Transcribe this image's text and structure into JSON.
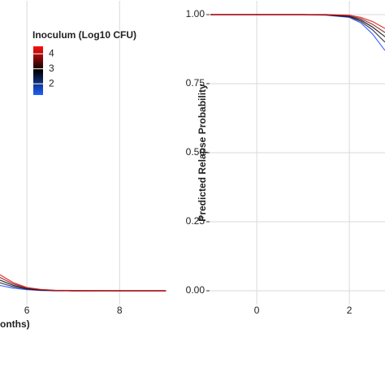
{
  "chart_data": [
    {
      "type": "line",
      "xlabel": "onths)",
      "x": [
        5.4,
        5.7,
        6,
        6.3,
        6.6,
        7,
        8,
        9
      ],
      "series": [
        {
          "color": "#2050ff",
          "values": [
            0.02,
            0.01,
            0.004,
            0.001,
            0,
            0,
            0,
            0
          ]
        },
        {
          "color": "#202040",
          "values": [
            0.03,
            0.015,
            0.006,
            0.002,
            0.001,
            0,
            0,
            0
          ]
        },
        {
          "color": "#000000",
          "values": [
            0.04,
            0.02,
            0.008,
            0.003,
            0.001,
            0,
            0,
            0
          ]
        },
        {
          "color": "#802020",
          "values": [
            0.05,
            0.025,
            0.01,
            0.004,
            0.001,
            0,
            0,
            0
          ]
        },
        {
          "color": "#e01010",
          "values": [
            0.06,
            0.03,
            0.012,
            0.005,
            0.002,
            0.001,
            0,
            0
          ]
        }
      ],
      "xlim": [
        5.42,
        9.1
      ],
      "xticks": [
        6,
        8
      ],
      "ylim": [
        -0.05,
        1.05
      ],
      "grid": true,
      "legend": {
        "title": "Inoculum (Log10 CFU)",
        "ticks": [
          4,
          3,
          2
        ],
        "lim": [
          1.25,
          4.5
        ],
        "colors": [
          "#2060ff",
          "#000000",
          "#ff1010"
        ]
      }
    },
    {
      "type": "line",
      "ylabel": "Predicted Relapse Probability",
      "x": [
        -1,
        0,
        1,
        1.5,
        2,
        2.25,
        2.5,
        2.77
      ],
      "series": [
        {
          "color": "#2050ff",
          "values": [
            1,
            1,
            1,
            0.998,
            0.99,
            0.97,
            0.93,
            0.87
          ]
        },
        {
          "color": "#202040",
          "values": [
            1,
            1,
            1,
            0.999,
            0.992,
            0.975,
            0.945,
            0.9
          ]
        },
        {
          "color": "#000000",
          "values": [
            1,
            1,
            1,
            0.999,
            0.994,
            0.98,
            0.955,
            0.92
          ]
        },
        {
          "color": "#802020",
          "values": [
            1,
            1,
            1,
            1,
            0.996,
            0.985,
            0.965,
            0.935
          ]
        },
        {
          "color": "#e01010",
          "values": [
            1,
            1,
            1,
            1,
            0.998,
            0.99,
            0.975,
            0.95
          ]
        }
      ],
      "xlim": [
        -1.02,
        2.77
      ],
      "xticks": [
        0,
        2
      ],
      "ylim": [
        -0.05,
        1.05
      ],
      "yticks": [
        {
          "value": 0,
          "label": "0.00"
        },
        {
          "value": 0.25,
          "label": "0.25"
        },
        {
          "value": 0.5,
          "label": "0.50"
        },
        {
          "value": 0.75,
          "label": "0.75"
        },
        {
          "value": 1,
          "label": "1.00"
        }
      ],
      "grid": true
    }
  ]
}
